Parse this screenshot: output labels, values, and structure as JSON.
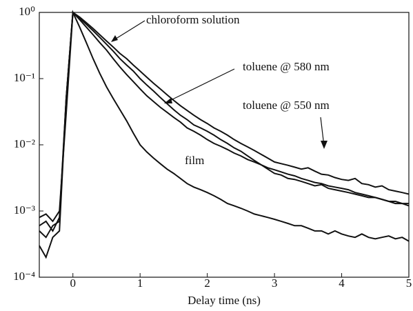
{
  "chart_data": {
    "type": "line",
    "x_label": "Delay time (ns)",
    "log_y": true,
    "xlim": [
      -0.5,
      5
    ],
    "xticks": [
      0,
      1,
      2,
      3,
      4,
      5
    ],
    "ylim": [
      0.0001,
      1
    ],
    "yticks": [
      {
        "value": 0.0001,
        "label": "10⁻⁴"
      },
      {
        "value": 0.001,
        "label": "10⁻³"
      },
      {
        "value": 0.01,
        "label": "10⁻²"
      },
      {
        "value": 0.1,
        "label": "10⁻¹"
      },
      {
        "value": 1,
        "label": "10⁰"
      }
    ],
    "x": [
      -0.5,
      -0.4,
      -0.3,
      -0.2,
      -0.1,
      0,
      0.1,
      0.2,
      0.3,
      0.4,
      0.5,
      0.6,
      0.7,
      0.8,
      0.9,
      1,
      1.1,
      1.2,
      1.3,
      1.4,
      1.5,
      1.6,
      1.7,
      1.8,
      1.9,
      2,
      2.1,
      2.2,
      2.3,
      2.4,
      2.5,
      2.6,
      2.7,
      2.8,
      2.9,
      3,
      3.1,
      3.2,
      3.3,
      3.4,
      3.5,
      3.6,
      3.7,
      3.8,
      3.9,
      4,
      4.1,
      4.2,
      4.3,
      4.4,
      4.5,
      4.6,
      4.7,
      4.8,
      4.9,
      5
    ],
    "series": [
      {
        "name": "chloroform solution",
        "color": "#111111",
        "values": [
          0.0008,
          0.0009,
          0.0007,
          0.001,
          0.03,
          1,
          0.85,
          0.7,
          0.57,
          0.46,
          0.37,
          0.3,
          0.24,
          0.2,
          0.16,
          0.13,
          0.105,
          0.085,
          0.07,
          0.057,
          0.047,
          0.039,
          0.033,
          0.028,
          0.024,
          0.021,
          0.018,
          0.016,
          0.014,
          0.012,
          0.0105,
          0.0093,
          0.0082,
          0.0072,
          0.0063,
          0.0055,
          0.0052,
          0.0049,
          0.0046,
          0.0043,
          0.0045,
          0.004,
          0.0036,
          0.0035,
          0.0032,
          0.003,
          0.0029,
          0.0031,
          0.0026,
          0.0025,
          0.0023,
          0.0024,
          0.0021,
          0.002,
          0.0019,
          0.0018
        ]
      },
      {
        "name": "toluene @ 580 nm",
        "color": "#111111",
        "values": [
          0.0006,
          0.0007,
          0.0005,
          0.0008,
          0.05,
          1,
          0.82,
          0.66,
          0.53,
          0.42,
          0.33,
          0.26,
          0.2,
          0.16,
          0.13,
          0.1,
          0.08,
          0.065,
          0.052,
          0.042,
          0.034,
          0.028,
          0.024,
          0.02,
          0.018,
          0.016,
          0.014,
          0.012,
          0.0105,
          0.009,
          0.008,
          0.0068,
          0.0058,
          0.005,
          0.0043,
          0.0037,
          0.0035,
          0.0031,
          0.003,
          0.0028,
          0.0026,
          0.0024,
          0.0025,
          0.0022,
          0.0021,
          0.002,
          0.0019,
          0.0018,
          0.0017,
          0.0016,
          0.0016,
          0.0015,
          0.0014,
          0.0014,
          0.0013,
          0.0013
        ]
      },
      {
        "name": "toluene @ 550 nm",
        "color": "#111111",
        "values": [
          0.0005,
          0.0004,
          0.0006,
          0.0007,
          0.05,
          1,
          0.78,
          0.6,
          0.46,
          0.35,
          0.27,
          0.2,
          0.15,
          0.115,
          0.09,
          0.07,
          0.055,
          0.045,
          0.037,
          0.031,
          0.026,
          0.022,
          0.018,
          0.016,
          0.014,
          0.012,
          0.0105,
          0.0095,
          0.0085,
          0.0075,
          0.0068,
          0.006,
          0.0055,
          0.005,
          0.0045,
          0.0042,
          0.0039,
          0.0036,
          0.0034,
          0.0031,
          0.0029,
          0.0027,
          0.0026,
          0.0024,
          0.0023,
          0.0022,
          0.0021,
          0.0019,
          0.0018,
          0.0017,
          0.0016,
          0.0015,
          0.0014,
          0.0013,
          0.0013,
          0.0012
        ]
      },
      {
        "name": "film",
        "color": "#111111",
        "values": [
          0.0003,
          0.0002,
          0.0004,
          0.0005,
          0.05,
          1,
          0.6,
          0.35,
          0.2,
          0.12,
          0.075,
          0.05,
          0.034,
          0.023,
          0.015,
          0.01,
          0.0078,
          0.0063,
          0.0052,
          0.0043,
          0.0037,
          0.0031,
          0.0026,
          0.0023,
          0.0021,
          0.0019,
          0.0017,
          0.0015,
          0.0013,
          0.0012,
          0.0011,
          0.001,
          0.0009,
          0.00085,
          0.0008,
          0.00075,
          0.0007,
          0.00065,
          0.0006,
          0.0006,
          0.00055,
          0.0005,
          0.0005,
          0.00045,
          0.0005,
          0.00045,
          0.00042,
          0.0004,
          0.00045,
          0.0004,
          0.00038,
          0.0004,
          0.00042,
          0.00038,
          0.0004,
          0.00035
        ]
      }
    ]
  }
}
